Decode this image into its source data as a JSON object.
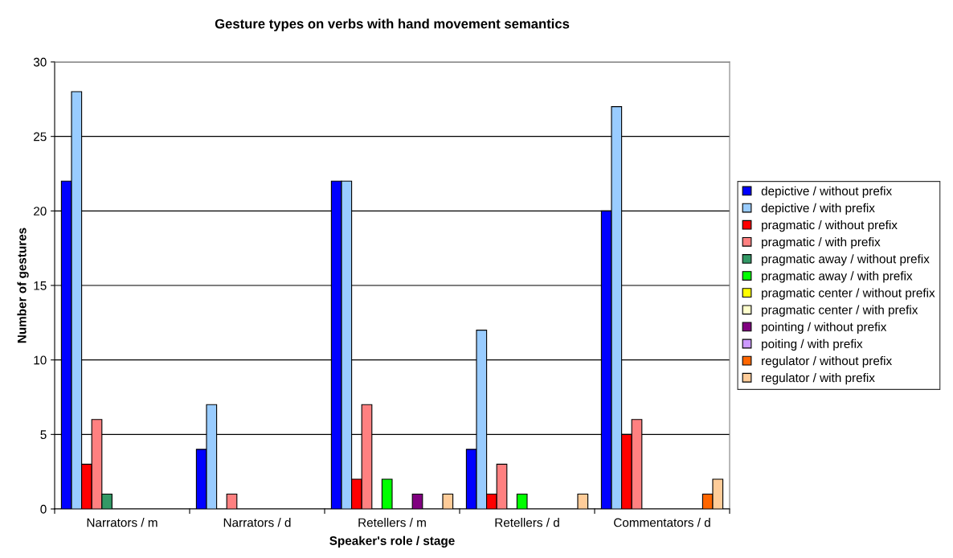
{
  "chart_data": {
    "type": "bar",
    "title": "Gesture types on verbs with hand movement semantics",
    "xlabel": "Speaker's role / stage",
    "ylabel": "Number of gestures",
    "categories": [
      "Narrators / m",
      "Narrators / d",
      "Retellers / m",
      "Retellers / d",
      "Commentators / d"
    ],
    "series": [
      {
        "name": "depictive / without prefix",
        "color": "#0000ff",
        "values": [
          22,
          4,
          22,
          4,
          20
        ]
      },
      {
        "name": "depictive / with prefix",
        "color": "#99ccff",
        "values": [
          28,
          7,
          22,
          12,
          27
        ]
      },
      {
        "name": "pragmatic / without prefix",
        "color": "#ff0000",
        "values": [
          3,
          0,
          2,
          1,
          5
        ]
      },
      {
        "name": "pragmatic / with prefix",
        "color": "#ff8080",
        "values": [
          6,
          1,
          7,
          3,
          6
        ]
      },
      {
        "name": "pragmatic away / without prefix",
        "color": "#339966",
        "values": [
          1,
          0,
          0,
          0,
          0
        ]
      },
      {
        "name": "pragmatic away / with prefix",
        "color": "#00ff00",
        "values": [
          0,
          0,
          2,
          1,
          0
        ]
      },
      {
        "name": "pragmatic center / without prefix",
        "color": "#ffff00",
        "values": [
          0,
          0,
          0,
          0,
          0
        ]
      },
      {
        "name": "pragmatic center / with prefix",
        "color": "#ffffcc",
        "values": [
          0,
          0,
          0,
          0,
          0
        ]
      },
      {
        "name": "pointing / without prefix",
        "color": "#800080",
        "values": [
          0,
          0,
          1,
          0,
          0
        ]
      },
      {
        "name": "poiting / with prefix",
        "color": "#cc99ff",
        "values": [
          0,
          0,
          0,
          0,
          0
        ]
      },
      {
        "name": "regulator / without prefix",
        "color": "#ff6600",
        "values": [
          0,
          0,
          0,
          0,
          1
        ]
      },
      {
        "name": "regulator / with prefix",
        "color": "#ffcc99",
        "values": [
          0,
          0,
          1,
          1,
          2
        ]
      }
    ],
    "ylim": [
      0,
      30
    ],
    "yticks": [
      0,
      5,
      10,
      15,
      20,
      25,
      30
    ],
    "grid": "y",
    "legend": "right"
  }
}
